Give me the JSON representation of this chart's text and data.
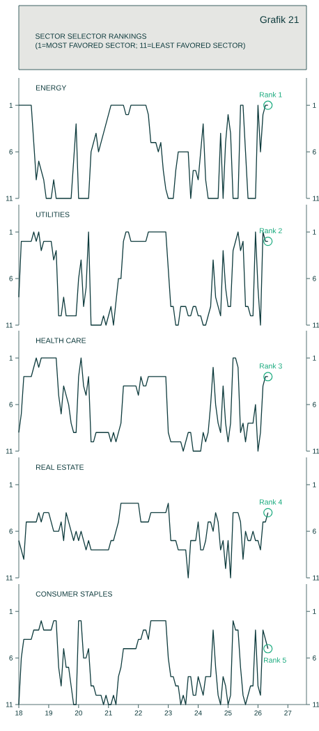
{
  "chart_data": [
    {
      "type": "other",
      "title": "SECTOR SELECTOR RANKINGS",
      "subtitle": "(1=MOST FAVORED SECTOR; 11=LEAST FAVORED SECTOR)",
      "annotations": [
        "Grafik 21"
      ]
    },
    {
      "type": "line",
      "title": "ENERGY",
      "color": "#0e3b3d",
      "xlim": [
        "2018-01",
        "2027-08-15"
      ],
      "ylim": [
        11,
        -1.93
      ],
      "yticks": [
        1,
        6,
        11
      ],
      "y2lim": [
        11,
        -1.93
      ],
      "y2ticks": [
        1,
        6,
        11
      ],
      "tick_labels": "y",
      "annotations": [
        {
          "text": "Rank 1",
          "x": "2026-05",
          "y": 1
        }
      ],
      "x": [
        "2018-01",
        "2018-06",
        "2018-08",
        "2018-09",
        "2018-11",
        "2018-12",
        "2019-02",
        "2019-03",
        "2019-04",
        "2019-10",
        "2019-12",
        "2020-01",
        "2020-05",
        "2020-06",
        "2020-07",
        "2020-08",
        "2020-09",
        "2021-02",
        "2021-07",
        "2021-08",
        "2021-09",
        "2021-10",
        "2022-04",
        "2022-05",
        "2022-06",
        "2022-08",
        "2022-09",
        "2022-10",
        "2022-11",
        "2022-12",
        "2023-01",
        "2023-03",
        "2023-04",
        "2023-05",
        "2023-09",
        "2023-10",
        "2023-11",
        "2023-12",
        "2024-01",
        "2024-03",
        "2024-04",
        "2024-05",
        "2024-09",
        "2024-10",
        "2024-11",
        "2024-12",
        "2025-01",
        "2025-02",
        "2025-03",
        "2025-05",
        "2025-06",
        "2025-07",
        "2025-08",
        "2025-09",
        "2025-12",
        "2026-01",
        "2026-02",
        "2026-03",
        "2026-04",
        "2026-05"
      ],
      "values": [
        1,
        1,
        9,
        7,
        9,
        11,
        11,
        9,
        11,
        11,
        3,
        11,
        11,
        6,
        5,
        4,
        6,
        1,
        1,
        2,
        2,
        1,
        1,
        2,
        5,
        5,
        6,
        5,
        8,
        10,
        11,
        11,
        8,
        6,
        6,
        11,
        8,
        8,
        9,
        3,
        9,
        11,
        11,
        4,
        11,
        5,
        2,
        4,
        11,
        11,
        1,
        1,
        6,
        11,
        11,
        1,
        6,
        2,
        1,
        1
      ]
    },
    {
      "type": "line",
      "title": "UTILITIES",
      "color": "#0e3b3d",
      "xlim": [
        "2018-01",
        "2027-08-15"
      ],
      "ylim": [
        11,
        -1.93
      ],
      "yticks": [
        1,
        6,
        11
      ],
      "y2lim": [
        11,
        -1.93
      ],
      "y2ticks": [
        1,
        6,
        11
      ],
      "tick_labels": "y",
      "annotations": [
        {
          "text": "Rank 2",
          "x": "2026-05",
          "y": 2
        }
      ],
      "x": [
        "2018-01",
        "2018-02",
        "2018-06",
        "2018-07",
        "2018-08",
        "2018-09",
        "2018-10",
        "2018-11",
        "2019-02",
        "2019-03",
        "2019-04",
        "2019-05",
        "2019-06",
        "2019-07",
        "2019-08",
        "2019-12",
        "2020-01",
        "2020-02",
        "2020-03",
        "2020-04",
        "2020-05",
        "2020-06",
        "2020-10",
        "2020-11",
        "2020-12",
        "2021-02",
        "2021-03",
        "2021-05",
        "2021-06",
        "2021-07",
        "2021-08",
        "2021-09",
        "2021-10",
        "2022-04",
        "2022-05",
        "2022-12",
        "2023-02",
        "2023-03",
        "2023-04",
        "2023-05",
        "2023-06",
        "2023-08",
        "2023-09",
        "2023-10",
        "2023-11",
        "2023-12",
        "2024-01",
        "2024-02",
        "2024-03",
        "2024-04",
        "2024-06",
        "2024-07",
        "2024-08",
        "2024-10",
        "2024-11",
        "2024-12",
        "2025-01",
        "2025-02",
        "2025-03",
        "2025-05",
        "2025-06",
        "2025-07",
        "2025-08",
        "2025-09",
        "2025-10",
        "2025-11",
        "2025-12",
        "2026-01",
        "2026-02",
        "2026-03",
        "2026-04",
        "2026-05"
      ],
      "values": [
        8,
        2,
        2,
        1,
        2,
        1,
        3,
        2,
        2,
        4,
        3,
        10,
        10,
        8,
        10,
        10,
        6,
        4,
        9,
        7,
        1,
        11,
        11,
        10,
        11,
        9,
        11,
        6,
        6,
        2,
        1,
        1,
        2,
        2,
        1,
        1,
        9,
        9,
        11,
        11,
        9,
        9,
        10,
        10,
        9,
        9,
        10,
        10,
        11,
        11,
        9,
        4,
        8,
        10,
        3,
        7,
        9,
        9,
        3,
        1,
        3,
        2,
        9,
        9,
        10,
        10,
        1,
        7,
        11,
        1,
        2,
        2
      ]
    },
    {
      "type": "line",
      "title": "HEALTH CARE",
      "color": "#0e3b3d",
      "xlim": [
        "2018-01",
        "2027-08-15"
      ],
      "ylim": [
        11,
        -1.93
      ],
      "yticks": [
        1,
        6,
        11
      ],
      "y2lim": [
        11,
        -1.93
      ],
      "y2ticks": [
        1,
        6,
        11
      ],
      "tick_labels": "y",
      "annotations": [
        {
          "text": "Rank 3",
          "x": "2026-05",
          "y": 3
        }
      ],
      "x": [
        "2018-01",
        "2018-02",
        "2018-03",
        "2018-06",
        "2018-08",
        "2018-09",
        "2018-10",
        "2019-04",
        "2019-05",
        "2019-06",
        "2019-07",
        "2019-09",
        "2019-10",
        "2019-11",
        "2019-12",
        "2020-01",
        "2020-02",
        "2020-03",
        "2020-04",
        "2020-05",
        "2020-06",
        "2020-07",
        "2020-08",
        "2021-01",
        "2021-02",
        "2021-03",
        "2021-04",
        "2021-06",
        "2021-07",
        "2021-12",
        "2022-01",
        "2022-02",
        "2022-03",
        "2022-04",
        "2022-05",
        "2022-12",
        "2023-01",
        "2023-02",
        "2023-06",
        "2023-07",
        "2023-09",
        "2023-10",
        "2023-11",
        "2024-02",
        "2024-03",
        "2024-04",
        "2024-05",
        "2024-06",
        "2024-07",
        "2024-08",
        "2024-09",
        "2024-10",
        "2024-11",
        "2024-12",
        "2025-01",
        "2025-02",
        "2025-03",
        "2025-04",
        "2025-05",
        "2025-06",
        "2025-07",
        "2025-08",
        "2025-09",
        "2025-11",
        "2025-12",
        "2026-01",
        "2026-02",
        "2026-03",
        "2026-04",
        "2026-05"
      ],
      "values": [
        9,
        7,
        3,
        3,
        1,
        2,
        1,
        1,
        5,
        7,
        4,
        6,
        8,
        9,
        9,
        3,
        1,
        4,
        5,
        3,
        10,
        10,
        9,
        9,
        10,
        9,
        10,
        8,
        4,
        4,
        5,
        3,
        4,
        4,
        3,
        3,
        9,
        10,
        10,
        11,
        9,
        9,
        11,
        11,
        9,
        10,
        9,
        6,
        2,
        6,
        8,
        9,
        4,
        8,
        10,
        8,
        1,
        1,
        2,
        9,
        8,
        10,
        8,
        8,
        6,
        11,
        9,
        4,
        3,
        3
      ]
    },
    {
      "type": "line",
      "title": "REAL ESTATE",
      "color": "#0e3b3d",
      "xlim": [
        "2018-01",
        "2027-08-15"
      ],
      "ylim": [
        11,
        -1.93
      ],
      "yticks": [
        1,
        6,
        11
      ],
      "y2lim": [
        11,
        -1.93
      ],
      "y2ticks": [
        1,
        6,
        11
      ],
      "tick_labels": "y",
      "annotations": [
        {
          "text": "Rank 4",
          "x": "2026-05",
          "y": 4
        }
      ],
      "x": [
        "2018-01",
        "2018-03",
        "2018-04",
        "2018-08",
        "2018-09",
        "2018-10",
        "2018-11",
        "2019-01",
        "2019-03",
        "2019-05",
        "2019-06",
        "2019-07",
        "2019-08",
        "2019-11",
        "2019-12",
        "2020-01",
        "2020-02",
        "2020-04",
        "2020-05",
        "2020-06",
        "2021-01",
        "2021-02",
        "2021-03",
        "2021-05",
        "2021-06",
        "2022-01",
        "2022-02",
        "2022-05",
        "2022-06",
        "2022-12",
        "2023-01",
        "2023-02",
        "2023-04",
        "2023-05",
        "2023-08",
        "2023-09",
        "2023-10",
        "2023-12",
        "2024-01",
        "2024-02",
        "2024-03",
        "2024-04",
        "2024-05",
        "2024-06",
        "2024-07",
        "2024-08",
        "2024-09",
        "2024-10",
        "2024-11",
        "2024-12",
        "2025-01",
        "2025-02",
        "2025-03",
        "2025-05",
        "2025-06",
        "2025-07",
        "2025-08",
        "2025-09",
        "2025-10",
        "2025-11",
        "2025-12",
        "2026-01",
        "2026-02",
        "2026-03",
        "2026-04",
        "2026-05"
      ],
      "values": [
        7,
        9,
        5,
        5,
        4,
        5,
        4,
        4,
        6,
        6,
        5,
        7,
        4,
        7,
        6,
        7,
        6,
        8,
        7,
        8,
        8,
        7,
        7,
        5,
        3,
        3,
        5,
        5,
        4,
        4,
        3,
        7,
        7,
        8,
        8,
        11,
        7,
        7,
        5,
        8,
        8,
        7,
        5,
        5,
        6,
        4,
        5,
        8,
        7,
        10,
        7,
        11,
        4,
        4,
        5,
        9,
        6,
        7,
        7,
        6,
        7,
        7,
        8,
        5,
        5,
        4
      ]
    },
    {
      "type": "line",
      "title": "CONSUMER STAPLES",
      "color": "#0e3b3d",
      "xlim": [
        "2018-01",
        "2027-08-15"
      ],
      "ylim": [
        11,
        -1.93
      ],
      "yticks": [
        1,
        6,
        11
      ],
      "y2lim": [
        11,
        -1.93
      ],
      "y2ticks": [
        1,
        6,
        11
      ],
      "xticks": [
        {
          "value": "2018-01",
          "label": "18"
        },
        {
          "value": "2019-01",
          "label": "19"
        },
        {
          "value": "2020-01",
          "label": "20"
        },
        {
          "value": "2021-01",
          "label": "21"
        },
        {
          "value": "2022-01",
          "label": "22"
        },
        {
          "value": "2023-01",
          "label": "23"
        },
        {
          "value": "2024-01",
          "label": "24"
        },
        {
          "value": "2025-01",
          "label": "25"
        },
        {
          "value": "2026-01",
          "label": "26"
        },
        {
          "value": "2027-01",
          "label": "27"
        }
      ],
      "annotations": [
        {
          "text": "Rank 5",
          "x": "2026-05",
          "y": 5
        }
      ],
      "x": [
        "2018-01",
        "2018-02",
        "2018-03",
        "2018-06",
        "2018-07",
        "2018-09",
        "2018-10",
        "2018-11",
        "2019-02",
        "2019-03",
        "2019-04",
        "2019-05",
        "2019-06",
        "2019-07",
        "2019-08",
        "2019-09",
        "2019-11",
        "2019-12",
        "2020-01",
        "2020-02",
        "2020-03",
        "2020-04",
        "2020-05",
        "2020-06",
        "2020-07",
        "2020-08",
        "2020-10",
        "2020-11",
        "2020-12",
        "2021-01",
        "2021-02",
        "2021-03",
        "2021-04",
        "2021-05",
        "2021-06",
        "2021-07",
        "2021-12",
        "2022-01",
        "2022-02",
        "2022-03",
        "2022-04",
        "2022-05",
        "2022-06",
        "2022-12",
        "2023-01",
        "2023-02",
        "2023-03",
        "2023-04",
        "2023-05",
        "2023-06",
        "2023-07",
        "2023-08",
        "2023-09",
        "2023-10",
        "2023-11",
        "2023-12",
        "2024-01",
        "2024-03",
        "2024-04",
        "2024-06",
        "2024-07",
        "2024-08",
        "2024-09",
        "2024-10",
        "2024-11",
        "2024-12",
        "2025-01",
        "2025-02",
        "2025-03",
        "2025-04",
        "2025-05",
        "2025-06",
        "2025-07",
        "2025-08",
        "2025-10",
        "2025-11",
        "2025-12",
        "2026-01",
        "2026-02",
        "2026-03",
        "2026-05"
      ],
      "values": [
        11,
        6,
        4,
        4,
        3,
        3,
        2,
        3,
        3,
        2,
        2,
        7,
        9,
        5,
        7,
        7,
        11,
        11,
        2,
        2,
        6,
        6,
        5,
        9,
        9,
        10,
        10,
        11,
        10,
        11,
        11,
        10,
        11,
        8,
        7,
        5,
        5,
        4,
        4,
        3,
        3,
        4,
        2,
        2,
        6,
        8,
        8,
        9,
        9,
        11,
        10,
        11,
        8,
        8,
        10,
        10,
        8,
        10,
        8,
        8,
        3,
        7,
        10,
        11,
        8,
        9,
        11,
        10,
        2,
        3,
        3,
        7,
        10,
        11,
        9,
        9,
        3,
        9,
        10,
        3,
        5
      ]
    }
  ]
}
